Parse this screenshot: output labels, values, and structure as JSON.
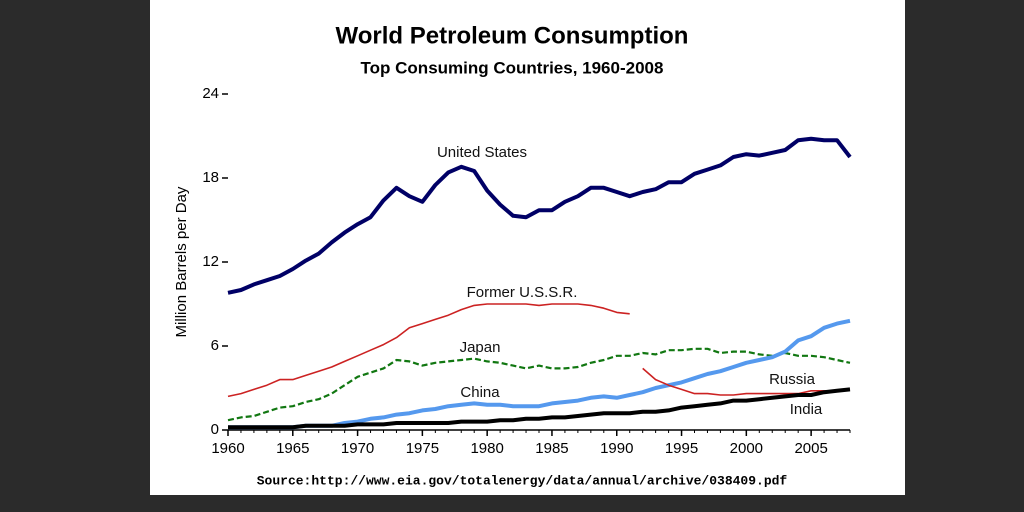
{
  "chart_data": {
    "type": "line",
    "title": "World Petroleum Consumption",
    "subtitle": "Top Consuming Countries, 1960-2008",
    "y_label": "Million Barrels per Day",
    "source": "Source:http://www.eia.gov/totalenergy/data/annual/archive/038409.pdf",
    "x": [
      1960,
      1961,
      1962,
      1963,
      1964,
      1965,
      1966,
      1967,
      1968,
      1969,
      1970,
      1971,
      1972,
      1973,
      1974,
      1975,
      1976,
      1977,
      1978,
      1979,
      1980,
      1981,
      1982,
      1983,
      1984,
      1985,
      1986,
      1987,
      1988,
      1989,
      1990,
      1991,
      1992,
      1993,
      1994,
      1995,
      1996,
      1997,
      1998,
      1999,
      2000,
      2001,
      2002,
      2003,
      2004,
      2005,
      2006,
      2007,
      2008
    ],
    "xlim": [
      1960,
      2008
    ],
    "xticks": [
      1960,
      1965,
      1970,
      1975,
      1980,
      1985,
      1990,
      1995,
      2000,
      2005
    ],
    "ylim": [
      0,
      24
    ],
    "yticks": [
      0,
      6,
      12,
      18,
      24
    ],
    "grid": false,
    "series": [
      {
        "name": "United States",
        "color": "#000066",
        "width": 4,
        "dash": false,
        "values": [
          9.8,
          10.0,
          10.4,
          10.7,
          11.0,
          11.5,
          12.1,
          12.6,
          13.4,
          14.1,
          14.7,
          15.2,
          16.4,
          17.3,
          16.7,
          16.3,
          17.5,
          18.4,
          18.8,
          18.5,
          17.1,
          16.1,
          15.3,
          15.2,
          15.7,
          15.7,
          16.3,
          16.7,
          17.3,
          17.3,
          17.0,
          16.7,
          17.0,
          17.2,
          17.7,
          17.7,
          18.3,
          18.6,
          18.9,
          19.5,
          19.7,
          19.6,
          19.8,
          20.0,
          20.7,
          20.8,
          20.7,
          20.7,
          19.5
        ]
      },
      {
        "name": "Former U.S.S.R.",
        "color": "#cc2222",
        "width": 1.6,
        "dash": false,
        "values": [
          2.4,
          2.6,
          2.9,
          3.2,
          3.6,
          3.6,
          3.9,
          4.2,
          4.5,
          4.9,
          5.3,
          5.7,
          6.1,
          6.6,
          7.3,
          7.6,
          7.9,
          8.2,
          8.6,
          8.9,
          9.0,
          9.0,
          9.0,
          9.0,
          8.9,
          9.0,
          9.0,
          9.0,
          8.9,
          8.7,
          8.4,
          8.3,
          null,
          null,
          null,
          null,
          null,
          null,
          null,
          null,
          null,
          null,
          null,
          null,
          null,
          null,
          null,
          null,
          null
        ]
      },
      {
        "name": "Japan",
        "color": "#117711",
        "width": 2.2,
        "dash": true,
        "values": [
          0.7,
          0.9,
          1.0,
          1.3,
          1.6,
          1.7,
          2.0,
          2.2,
          2.6,
          3.2,
          3.8,
          4.1,
          4.4,
          5.0,
          4.9,
          4.6,
          4.8,
          4.9,
          5.0,
          5.1,
          4.9,
          4.8,
          4.6,
          4.4,
          4.6,
          4.4,
          4.4,
          4.5,
          4.8,
          5.0,
          5.3,
          5.3,
          5.5,
          5.4,
          5.7,
          5.7,
          5.8,
          5.8,
          5.5,
          5.6,
          5.6,
          5.4,
          5.3,
          5.5,
          5.3,
          5.3,
          5.2,
          5.0,
          4.8
        ]
      },
      {
        "name": "China",
        "color": "#5599ee",
        "width": 4,
        "dash": false,
        "values": [
          0.2,
          0.2,
          0.2,
          0.2,
          0.2,
          0.2,
          0.3,
          0.3,
          0.3,
          0.5,
          0.6,
          0.8,
          0.9,
          1.1,
          1.2,
          1.4,
          1.5,
          1.7,
          1.8,
          1.9,
          1.8,
          1.8,
          1.7,
          1.7,
          1.7,
          1.9,
          2.0,
          2.1,
          2.3,
          2.4,
          2.3,
          2.5,
          2.7,
          3.0,
          3.2,
          3.4,
          3.7,
          4.0,
          4.2,
          4.5,
          4.8,
          5.0,
          5.2,
          5.6,
          6.4,
          6.7,
          7.3,
          7.6,
          7.8
        ]
      },
      {
        "name": "Russia",
        "color": "#cc2222",
        "width": 1.6,
        "dash": false,
        "values": [
          null,
          null,
          null,
          null,
          null,
          null,
          null,
          null,
          null,
          null,
          null,
          null,
          null,
          null,
          null,
          null,
          null,
          null,
          null,
          null,
          null,
          null,
          null,
          null,
          null,
          null,
          null,
          null,
          null,
          null,
          null,
          null,
          4.4,
          3.6,
          3.2,
          2.9,
          2.6,
          2.6,
          2.5,
          2.5,
          2.6,
          2.6,
          2.6,
          2.6,
          2.6,
          2.8,
          2.8,
          2.8,
          2.9
        ]
      },
      {
        "name": "India",
        "color": "#000000",
        "width": 4,
        "dash": false,
        "values": [
          0.2,
          0.2,
          0.2,
          0.2,
          0.2,
          0.2,
          0.3,
          0.3,
          0.3,
          0.3,
          0.4,
          0.4,
          0.4,
          0.5,
          0.5,
          0.5,
          0.5,
          0.5,
          0.6,
          0.6,
          0.6,
          0.7,
          0.7,
          0.8,
          0.8,
          0.9,
          0.9,
          1.0,
          1.1,
          1.2,
          1.2,
          1.2,
          1.3,
          1.3,
          1.4,
          1.6,
          1.7,
          1.8,
          1.9,
          2.1,
          2.1,
          2.2,
          2.3,
          2.4,
          2.5,
          2.5,
          2.7,
          2.8,
          2.9
        ]
      }
    ]
  }
}
